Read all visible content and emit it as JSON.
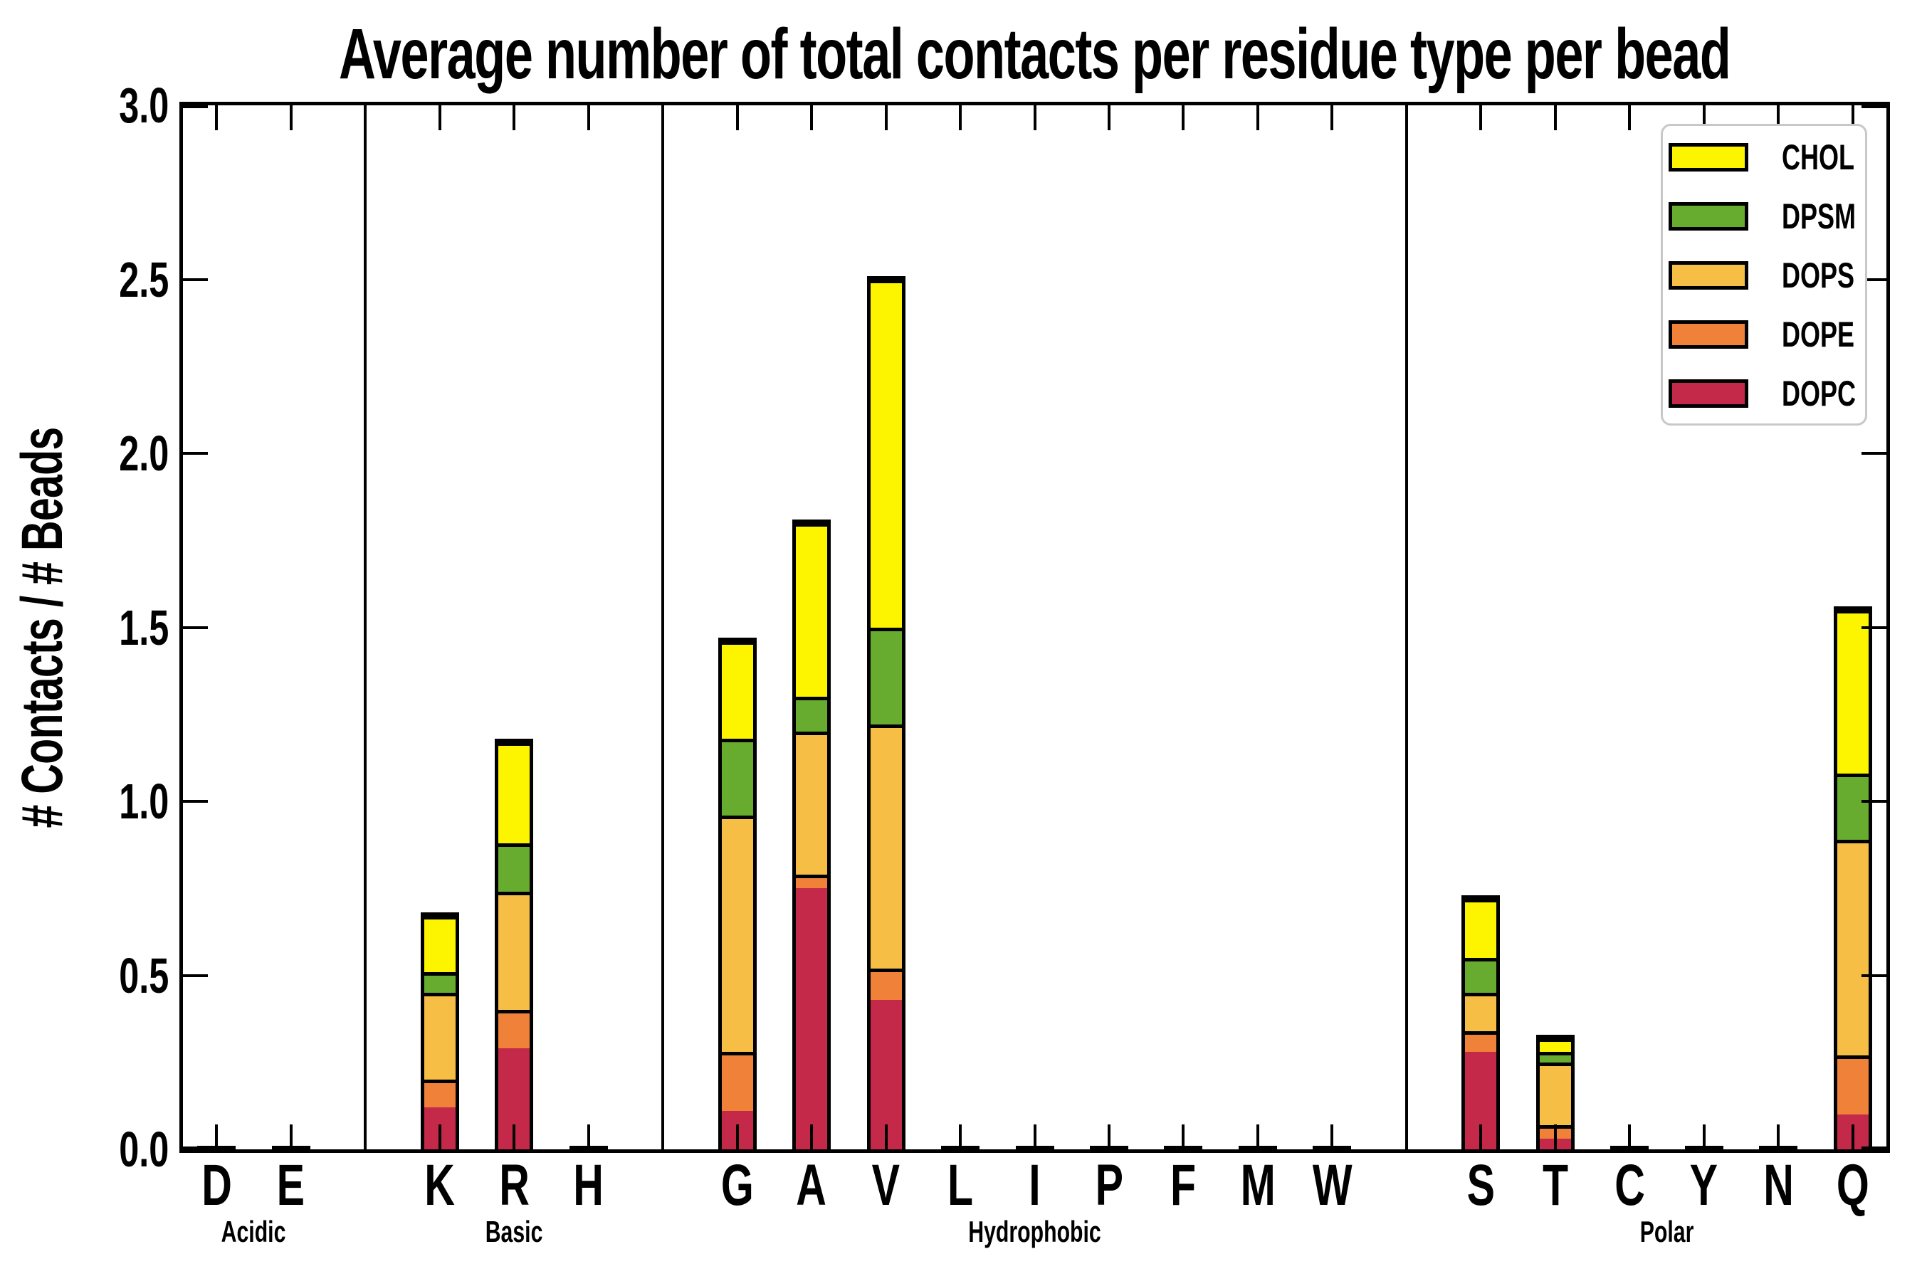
{
  "title": "Average number of total contacts per residue type per bead",
  "axes": {
    "ylabel": "# Contacts / # Beads",
    "ytick_labels": [
      "0.0",
      "0.5",
      "1.0",
      "1.5",
      "2.0",
      "2.5",
      "3.0"
    ],
    "ymin": 0,
    "ymax": 3
  },
  "legend": {
    "entries": [
      {
        "label": "CHOL",
        "color": "#FDF500"
      },
      {
        "label": "DPSM",
        "color": "#67AC2E"
      },
      {
        "label": "DOPS",
        "color": "#F7BE46"
      },
      {
        "label": "DOPE",
        "color": "#EF8139"
      },
      {
        "label": "DOPC",
        "color": "#C5294A"
      }
    ]
  },
  "chart_data": {
    "type": "bar",
    "subtype": "stacked_bar",
    "title": "Average number of total contacts per residue type per bead",
    "ylabel": "# Contacts / # Beads",
    "xlabel": "",
    "ylim": [
      0,
      3
    ],
    "yticks": [
      0,
      0.5,
      1,
      1.5,
      2,
      2.5,
      3
    ],
    "grid": false,
    "legend_position": "upper right",
    "bar_edge_color": "#000000",
    "categories": [
      "D",
      "E",
      "K",
      "R",
      "H",
      "G",
      "A",
      "V",
      "L",
      "I",
      "P",
      "F",
      "M",
      "W",
      "S",
      "T",
      "C",
      "Y",
      "N",
      "Q"
    ],
    "groups": [
      {
        "name": "Acidic",
        "residues": [
          "D",
          "E"
        ]
      },
      {
        "name": "Basic",
        "residues": [
          "K",
          "R",
          "H"
        ]
      },
      {
        "name": "Hydrophobic",
        "residues": [
          "G",
          "A",
          "V",
          "L",
          "I",
          "P",
          "F",
          "M",
          "W"
        ]
      },
      {
        "name": "Polar",
        "residues": [
          "S",
          "T",
          "C",
          "Y",
          "N",
          "Q"
        ]
      }
    ],
    "stack_order_bottom_to_top": [
      "DOPC",
      "DOPE",
      "DOPS",
      "DPSM",
      "CHOL"
    ],
    "series": [
      {
        "name": "DOPC",
        "color": "#C5294A",
        "values": [
          0,
          0,
          0.12,
          0.29,
          0,
          0.11,
          0.75,
          0.43,
          0,
          0,
          0,
          0,
          0,
          0,
          0.28,
          0.03,
          0,
          0,
          0,
          0.1
        ]
      },
      {
        "name": "DOPE",
        "color": "#EF8139",
        "values": [
          0,
          0,
          0.08,
          0.11,
          0,
          0.17,
          0.04,
          0.09,
          0,
          0,
          0,
          0,
          0,
          0,
          0.06,
          0.04,
          0,
          0,
          0,
          0.17
        ]
      },
      {
        "name": "DOPS",
        "color": "#F7BE46",
        "values": [
          0,
          0,
          0.25,
          0.34,
          0,
          0.68,
          0.41,
          0.7,
          0,
          0,
          0,
          0,
          0,
          0,
          0.11,
          0.18,
          0,
          0,
          0,
          0.62
        ]
      },
      {
        "name": "DPSM",
        "color": "#67AC2E",
        "values": [
          0,
          0,
          0.06,
          0.14,
          0,
          0.22,
          0.1,
          0.28,
          0,
          0,
          0,
          0,
          0,
          0,
          0.1,
          0.03,
          0,
          0,
          0,
          0.19
        ]
      },
      {
        "name": "CHOL",
        "color": "#FDF500",
        "values": [
          0,
          0,
          0.16,
          0.29,
          0,
          0.28,
          0.5,
          1.0,
          0,
          0,
          0,
          0,
          0,
          0,
          0.17,
          0.04,
          0,
          0,
          0,
          0.47
        ]
      }
    ],
    "totals": {
      "D": 0,
      "E": 0,
      "K": 0.67,
      "R": 1.17,
      "H": 0,
      "G": 1.46,
      "A": 1.8,
      "V": 2.5,
      "L": 0,
      "I": 0,
      "P": 0,
      "F": 0,
      "M": 0,
      "W": 0,
      "S": 0.72,
      "T": 0.32,
      "C": 0,
      "Y": 0,
      "N": 0,
      "Q": 1.55
    }
  }
}
